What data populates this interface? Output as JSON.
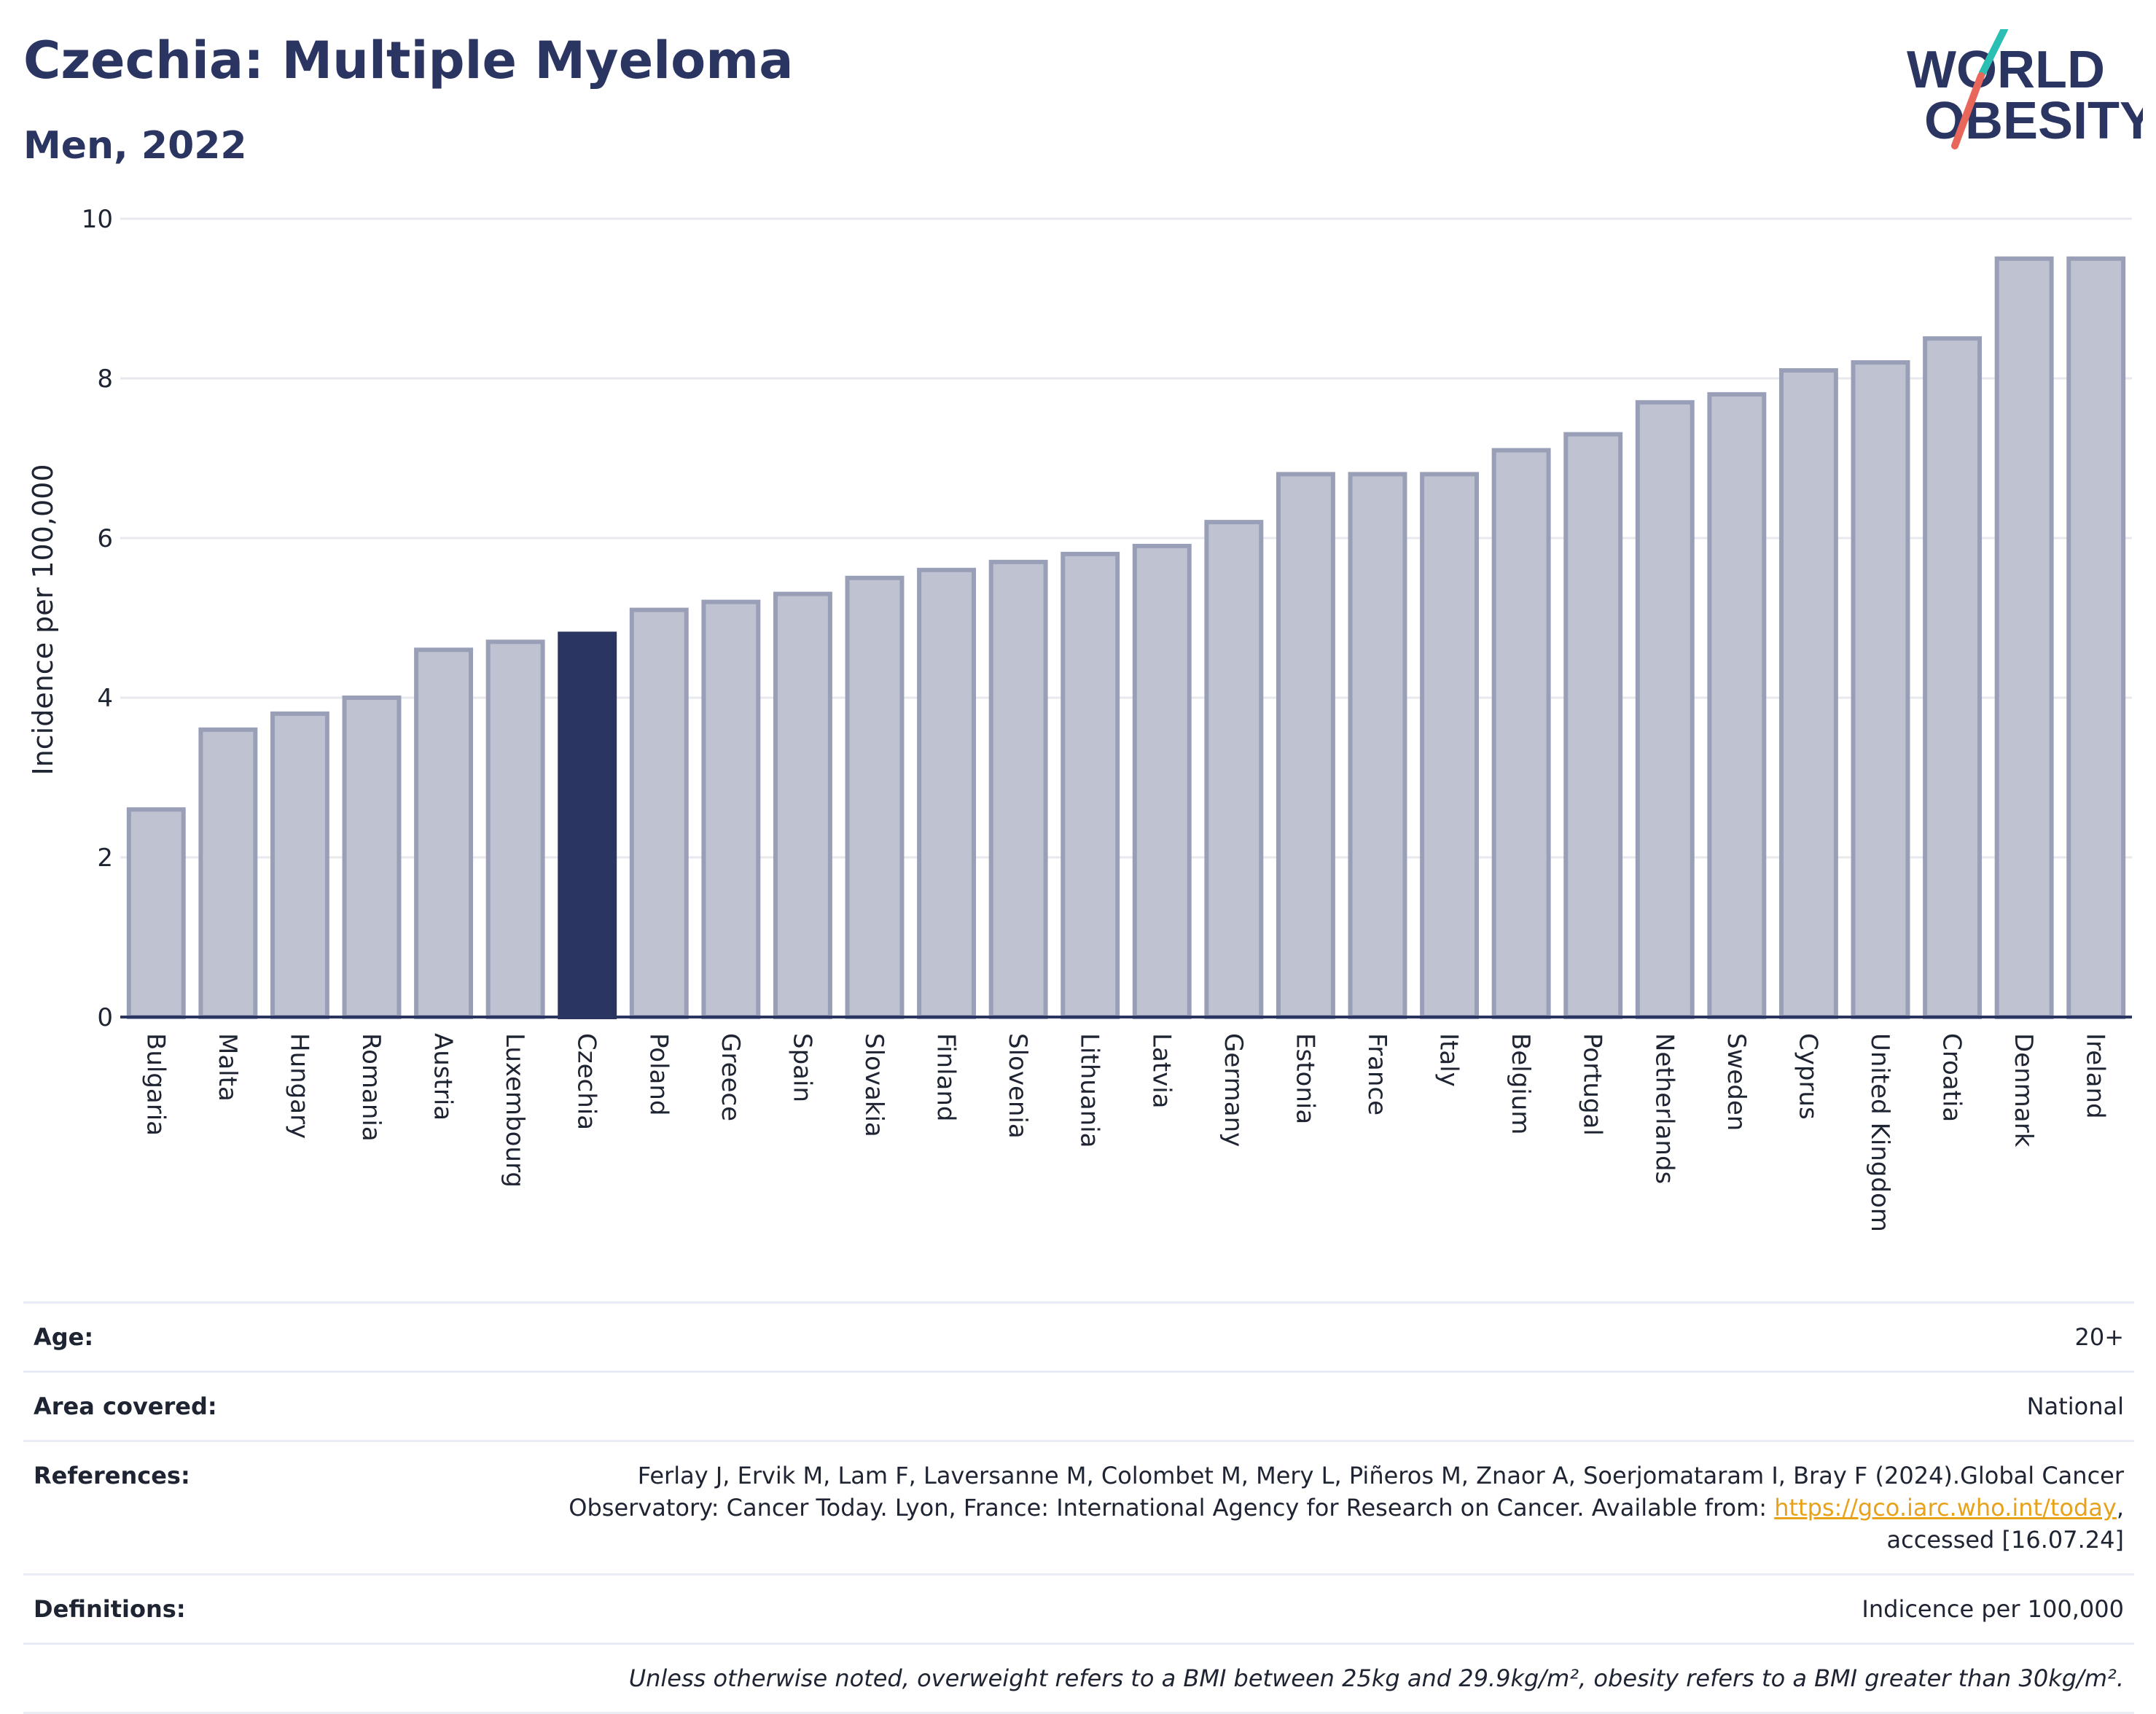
{
  "header": {
    "title": "Czechia: Multiple Myeloma",
    "subtitle": "Men, 2022"
  },
  "logo": {
    "line1": "WORLD",
    "line2": "OBESITY"
  },
  "colors": {
    "highlight": "#2b3561",
    "bar_fill": "#bfc2d0",
    "bar_stroke": "#9a9fb8",
    "grid": "#e8e9ef",
    "axis": "#2b3561",
    "link": "#e8a21a",
    "logo_teal": "#2bbfb3",
    "logo_coral": "#e8665a"
  },
  "chart_data": {
    "type": "bar",
    "ylabel": "Incidence per 100,000",
    "ylim": [
      0,
      10
    ],
    "yticks": [
      0,
      2,
      4,
      6,
      8,
      10
    ],
    "grid": true,
    "highlight_category": "Czechia",
    "categories": [
      "Bulgaria",
      "Malta",
      "Hungary",
      "Romania",
      "Austria",
      "Luxembourg",
      "Czechia",
      "Poland",
      "Greece",
      "Spain",
      "Slovakia",
      "Finland",
      "Slovenia",
      "Lithuania",
      "Latvia",
      "Germany",
      "Estonia",
      "France",
      "Italy",
      "Belgium",
      "Portugal",
      "Netherlands",
      "Sweden",
      "Cyprus",
      "United Kingdom",
      "Croatia",
      "Denmark",
      "Ireland"
    ],
    "values": [
      2.6,
      3.6,
      3.8,
      4.0,
      4.6,
      4.7,
      4.8,
      5.1,
      5.2,
      5.3,
      5.5,
      5.6,
      5.7,
      5.8,
      5.9,
      6.2,
      6.8,
      6.8,
      6.8,
      7.1,
      7.3,
      7.7,
      7.8,
      8.1,
      8.2,
      8.5,
      9.5,
      9.5
    ]
  },
  "info": {
    "age_label": "Age:",
    "age_value": "20+",
    "area_label": "Area covered:",
    "area_value": "National",
    "references_label": "References:",
    "references_text_1": "Ferlay J, Ervik M, Lam F, Laversanne M, Colombet M, Mery L, Piñeros M, Znaor A, Soerjomataram I, Bray F (2024).Global Cancer Observatory: Cancer Today. Lyon, France: International Agency for Research on Cancer. Available from: ",
    "references_link": "https://gco.iarc.who.int/today",
    "references_text_2": ", accessed [16.07.24]",
    "definitions_label": "Definitions:",
    "definitions_value": "Indicence per 100,000",
    "note": "Unless otherwise noted, overweight refers to a BMI between 25kg and 29.9kg/m², obesity refers to a BMI greater than 30kg/m²."
  }
}
